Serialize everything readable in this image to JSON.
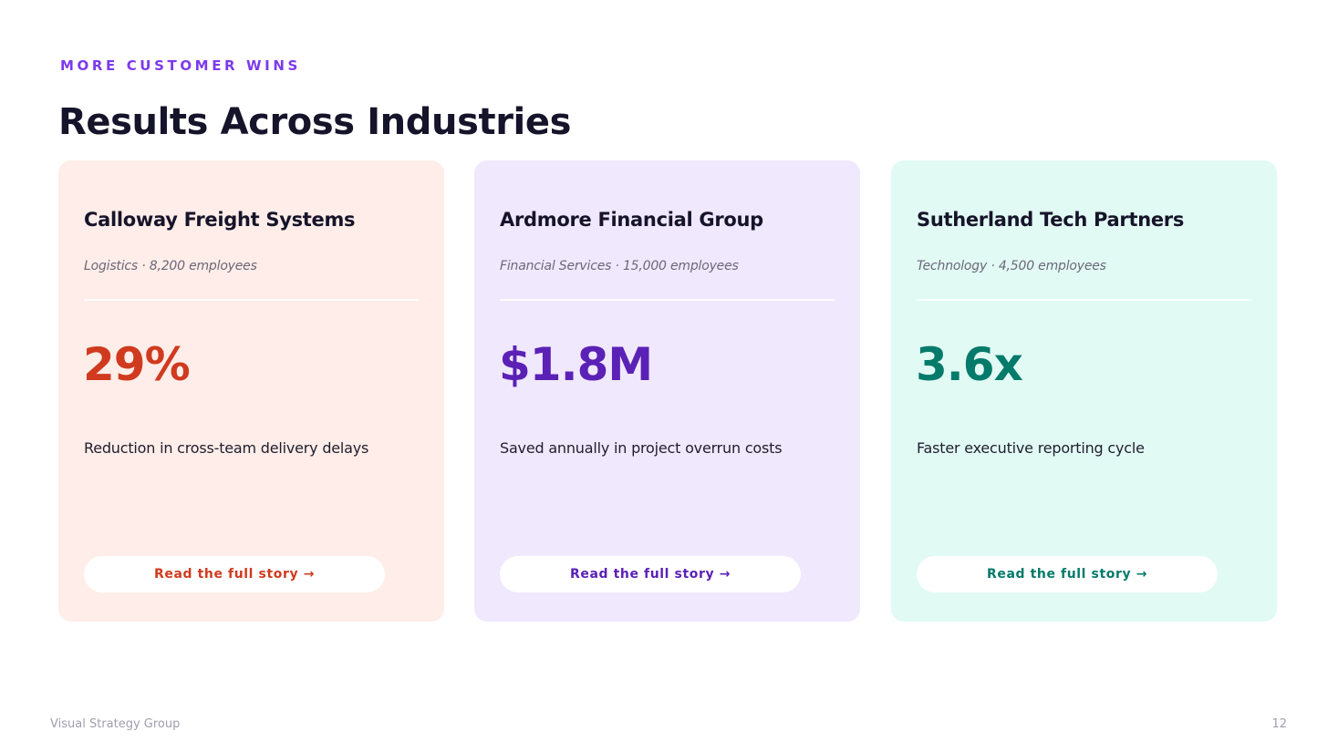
{
  "header": {
    "eyebrow": "MORE CUSTOMER WINS",
    "title": "Results Across Industries"
  },
  "colors": {
    "eyebrow": "#7c3aed",
    "title": "#16142a"
  },
  "cards": [
    {
      "name": "Calloway Freight Systems",
      "meta": "Logistics · 8,200 employees",
      "metric": "29%",
      "description": "Reduction in cross-team delivery delays",
      "cta": "Read the full story →",
      "accent": "#d03a1f",
      "background": "#feede8"
    },
    {
      "name": "Ardmore Financial Group",
      "meta": "Financial Services · 15,000 employees",
      "metric": "$1.8M",
      "description": "Saved annually in project overrun costs",
      "cta": "Read the full story →",
      "accent": "#5b21b6",
      "background": "#f0e8fd"
    },
    {
      "name": "Sutherland Tech Partners",
      "meta": "Technology · 4,500 employees",
      "metric": "3.6x",
      "description": "Faster executive reporting cycle",
      "cta": "Read the full story →",
      "accent": "#047a6a",
      "background": "#e1faf4"
    }
  ],
  "footer": {
    "brand": "Visual Strategy Group",
    "page_number": "12"
  }
}
